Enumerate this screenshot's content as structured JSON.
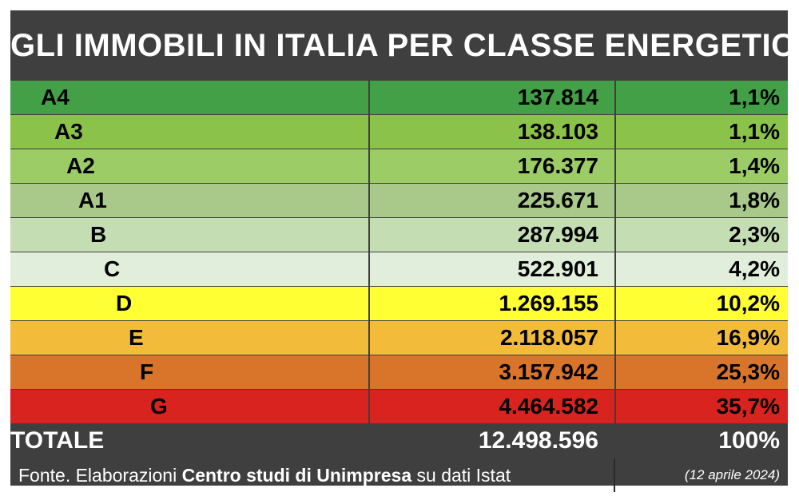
{
  "chart_data": {
    "type": "table",
    "title": "GLI IMMOBILI IN ITALIA PER CLASSE ENERGETICA",
    "rows": [
      {
        "class": "A4",
        "count": "137.814",
        "pct": "1,1%",
        "color": "#43a047"
      },
      {
        "class": "A3",
        "count": "138.103",
        "pct": "1,1%",
        "color": "#8bc34a"
      },
      {
        "class": "A2",
        "count": "176.377",
        "pct": "1,4%",
        "color": "#9ccc65"
      },
      {
        "class": "A1",
        "count": "225.671",
        "pct": "1,8%",
        "color": "#a9c98a"
      },
      {
        "class": "B",
        "count": "287.994",
        "pct": "2,3%",
        "color": "#c5ddb3"
      },
      {
        "class": "C",
        "count": "522.901",
        "pct": "4,2%",
        "color": "#e2eedc"
      },
      {
        "class": "D",
        "count": "1.269.155",
        "pct": "10,2%",
        "color": "#ffff33"
      },
      {
        "class": "E",
        "count": "2.118.057",
        "pct": "16,9%",
        "color": "#f2bb3a"
      },
      {
        "class": "F",
        "count": "3.157.942",
        "pct": "25,3%",
        "color": "#d9752a"
      },
      {
        "class": "G",
        "count": "4.464.582",
        "pct": "35,7%",
        "color": "#d9231e"
      }
    ],
    "total": {
      "label": "TOTALE",
      "count": "12.498.596",
      "pct": "100%"
    }
  },
  "footer": {
    "source_prefix": "Fonte. Elaborazioni ",
    "source_bold": "Centro studi di Unimpresa",
    "source_suffix": " su dati Istat",
    "date": "(12 aprile 2024)"
  }
}
